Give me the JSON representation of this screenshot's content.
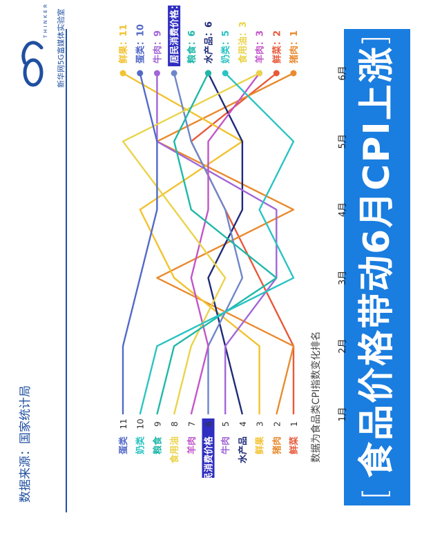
{
  "brackets": {
    "left": "[",
    "right": "]"
  },
  "source": "数据来源：国家统计局",
  "brand": {
    "think": "THINKER",
    "tagline": "新华网5G富媒体实验室"
  },
  "chart_data": {
    "type": "line",
    "title": "食品价格带动6月CPI上涨",
    "subtitle": "数据为食品类CPI指数变化排名",
    "x": [
      "1月",
      "2月",
      "3月",
      "4月",
      "5月",
      "6月"
    ],
    "y_axis": "rank",
    "ylim": [
      1,
      11
    ],
    "highlight": "居民消费价格",
    "series": [
      {
        "name": "鲜菜",
        "color": "#e8593a",
        "ranks": [
          1,
          1,
          3,
          5,
          7,
          2
        ]
      },
      {
        "name": "猪肉",
        "color": "#e98a2d",
        "ranks": [
          2,
          1,
          9,
          1,
          9,
          1
        ]
      },
      {
        "name": "鲜果",
        "color": "#f2c230",
        "ranks": [
          3,
          3,
          8,
          10,
          4,
          11
        ]
      },
      {
        "name": "水产品",
        "color": "#1e2a78",
        "ranks": [
          4,
          5,
          6,
          4,
          4,
          6
        ]
      },
      {
        "name": "牛肉",
        "color": "#a266d8",
        "ranks": [
          5,
          5,
          2,
          2,
          9,
          9
        ]
      },
      {
        "name": "居民消费价格",
        "color": "#6e86c8",
        "ranks": [
          6,
          6,
          4,
          5,
          7,
          8
        ]
      },
      {
        "name": "羊肉",
        "color": "#c255c8",
        "ranks": [
          7,
          6,
          7,
          6,
          6,
          3
        ]
      },
      {
        "name": "食用油",
        "color": "#ead34a",
        "ranks": [
          8,
          7,
          5,
          8,
          11,
          3
        ]
      },
      {
        "name": "粮食",
        "color": "#1eb8a8",
        "ranks": [
          9,
          8,
          2,
          7,
          8,
          6
        ]
      },
      {
        "name": "奶类",
        "color": "#2bc3c3",
        "ranks": [
          10,
          9,
          1,
          3,
          1,
          5
        ]
      },
      {
        "name": "蛋类",
        "color": "#5269c8",
        "ranks": [
          11,
          11,
          10,
          9,
          9,
          10
        ]
      }
    ]
  }
}
